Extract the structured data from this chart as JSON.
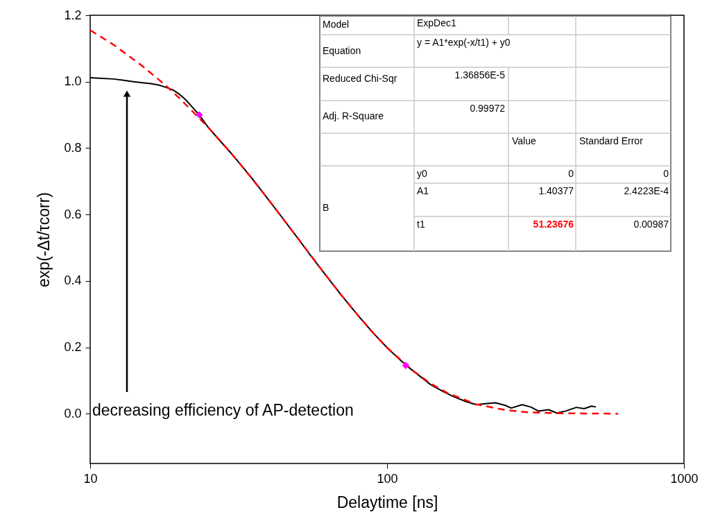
{
  "chart_data": {
    "type": "line",
    "xlabel": "Delaytime [ns]",
    "ylabel": "exp(-Δt/τcorr)",
    "log": "x",
    "grid": false,
    "xlim": [
      10,
      1000
    ],
    "xticks": [
      10,
      100,
      1000
    ],
    "ylim": [
      -0.15,
      1.2
    ],
    "yticks": [
      {
        "value": 0,
        "label": "0.0"
      },
      {
        "value": 0.2,
        "label": "0.2"
      },
      {
        "value": 0.4,
        "label": "0.4"
      },
      {
        "value": 0.6,
        "label": "0.6"
      },
      {
        "value": 0.8,
        "label": "0.8"
      },
      {
        "value": 1,
        "label": "1.0"
      },
      {
        "value": 1.2,
        "label": "1.2"
      }
    ],
    "series": [
      {
        "color": "#000000",
        "line_style": "solid",
        "x": [
          10,
          11,
          12,
          13,
          14,
          15,
          16,
          17,
          18,
          19,
          20,
          21,
          22,
          23.3,
          25,
          27,
          30,
          33,
          36,
          40,
          45,
          50,
          55,
          60,
          70,
          80,
          90,
          100,
          110,
          120,
          140,
          155,
          167,
          185,
          200,
          215,
          232,
          250,
          262,
          285,
          305,
          323,
          350,
          373,
          400,
          434,
          461,
          489,
          505
        ],
        "values": [
          1.012,
          1.01,
          1.008,
          1.004,
          1.0,
          0.997,
          0.994,
          0.99,
          0.983,
          0.975,
          0.962,
          0.945,
          0.925,
          0.9,
          0.862,
          0.828,
          0.782,
          0.738,
          0.696,
          0.643,
          0.583,
          0.529,
          0.479,
          0.435,
          0.358,
          0.295,
          0.242,
          0.199,
          0.164,
          0.135,
          0.088,
          0.066,
          0.052,
          0.036,
          0.027,
          0.03,
          0.033,
          0.025,
          0.017,
          0.027,
          0.02,
          0.008,
          0.012,
          0.002,
          0.008,
          0.019,
          0.015,
          0.023,
          0.02
        ]
      },
      {
        "color": "#ff0000",
        "line_style": "dashed",
        "x": [
          10,
          12,
          15,
          18,
          20,
          25,
          30,
          35,
          40,
          50,
          60,
          70,
          80,
          90,
          100,
          120,
          140,
          160,
          200,
          250,
          300,
          400,
          600
        ],
        "values": [
          1.155,
          1.111,
          1.047,
          0.988,
          0.95,
          0.862,
          0.782,
          0.709,
          0.643,
          0.529,
          0.435,
          0.358,
          0.295,
          0.242,
          0.199,
          0.135,
          0.091,
          0.062,
          0.028,
          0.011,
          0.004,
          0.001,
          0.0
        ]
      },
      {
        "type": "scatter",
        "color": "#ff00ff",
        "marker": "diamond",
        "x": [
          23.3,
          115.6
        ],
        "values": [
          0.9,
          0.145
        ]
      }
    ],
    "annotations": [
      "decreasing efficiency of AP-detection",
      "Model",
      "ExpDec1",
      "Equation",
      "y = A1*exp(-x/t1) + y0",
      "Reduced Chi-Sqr",
      "1.36856E-5",
      "Adj. R-Square",
      "0.99972",
      "Value",
      "Standard Error",
      "B",
      "y0",
      "0",
      "0",
      "A1",
      "1.40377",
      "2.4223E-4",
      "t1",
      "51.23676",
      "0.00987"
    ]
  }
}
